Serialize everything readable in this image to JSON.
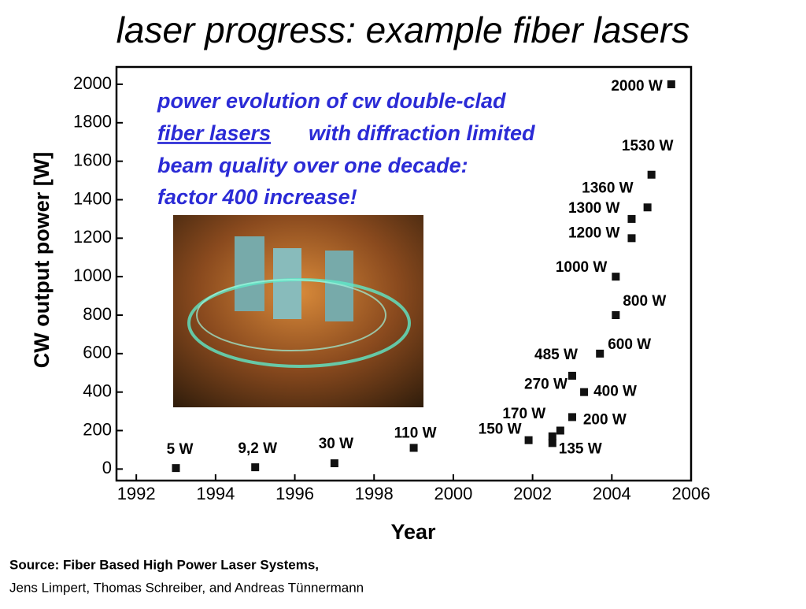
{
  "slide": {
    "title": "laser progress: example fiber lasers",
    "source": [
      "Source: Fiber Based High Power Laser Systems,",
      "Jens Limpert, Thomas Schreiber, and Andreas Tünnermann"
    ]
  },
  "chart_data": {
    "type": "scatter",
    "xlabel": "Year",
    "ylabel": "CW output power [W]",
    "annotation": [
      "power evolution of cw double-clad",
      "fiber lasers",
      "with diffraction limited",
      "beam quality over one decade:",
      "factor 400 increase!"
    ],
    "xlim": [
      1991.5,
      2006
    ],
    "xticks": [
      1992,
      1994,
      1996,
      1998,
      2000,
      2002,
      2004,
      2006
    ],
    "ylim": [
      -60,
      2090
    ],
    "yticks": [
      0,
      200,
      400,
      600,
      800,
      1000,
      1200,
      1400,
      1600,
      1800,
      2000
    ],
    "color": "#111111",
    "x": [
      1993,
      1995,
      1997,
      1999,
      2001.9,
      2002.5,
      2002.5,
      2002.7,
      2003.0,
      2003.0,
      2003.3,
      2003.7,
      2004.1,
      2004.1,
      2004.5,
      2004.5,
      2004.9,
      2005.0,
      2005.5
    ],
    "values": [
      5,
      9.2,
      30,
      110,
      150,
      135,
      170,
      200,
      270,
      485,
      400,
      600,
      800,
      1000,
      1200,
      1300,
      1360,
      1530,
      2000
    ],
    "value_labels": [
      "5 W",
      "9,2 W",
      "30 W",
      "110 W",
      "150 W",
      "135 W",
      "170 W",
      "200 W",
      "270 W",
      "485 W",
      "400 W",
      "600 W",
      "800 W",
      "1000 W",
      "1200 W",
      "1300 W",
      "1360 W",
      "1530 W",
      "2000 W"
    ]
  }
}
